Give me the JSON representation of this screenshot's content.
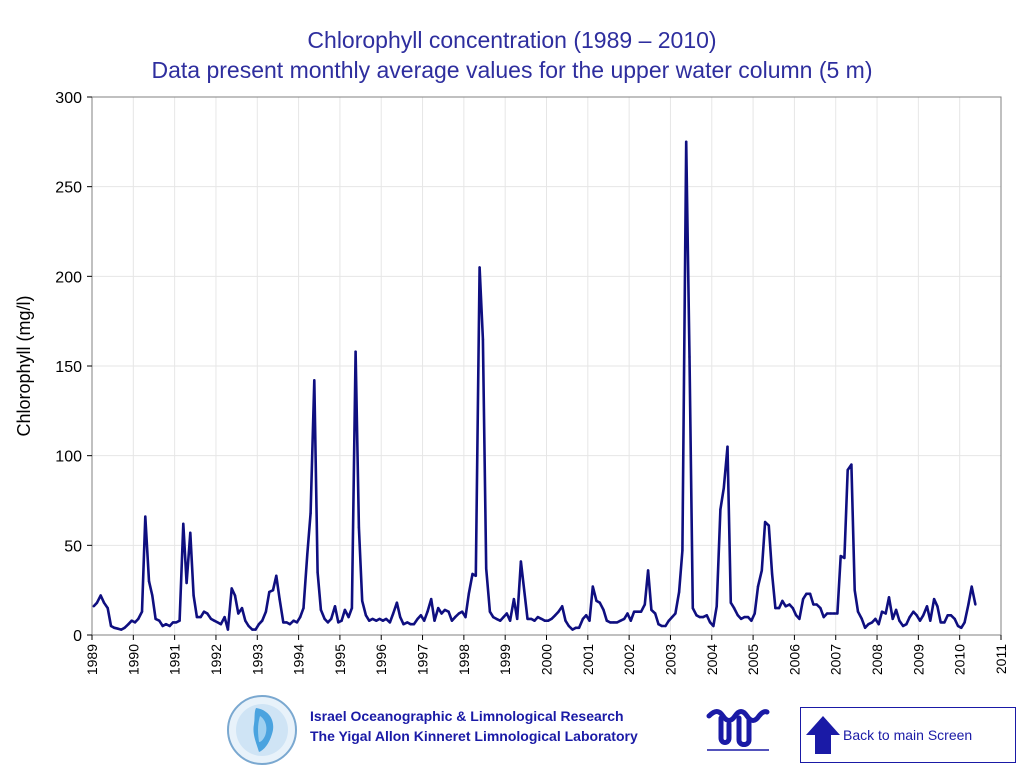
{
  "chart_data": {
    "type": "line",
    "title": "Chlorophyll concentration (1989 – 2010)",
    "subtitle": "Data present monthly average values for the upper water column (5 m)",
    "xlabel": "",
    "ylabel": "Chlorophyll (mg/l)",
    "xlim": [
      1989,
      2011
    ],
    "ylim": [
      0,
      300
    ],
    "yticks": [
      0,
      50,
      100,
      150,
      200,
      250,
      300
    ],
    "xticks": [
      "1989",
      "1990",
      "1991",
      "1992",
      "1993",
      "1994",
      "1995",
      "1996",
      "1997",
      "1998",
      "1999",
      "2000",
      "2001",
      "2002",
      "2003",
      "2004",
      "2005",
      "2006",
      "2007",
      "2008",
      "2009",
      "2010",
      "2011"
    ],
    "grid": true,
    "line_color": "#0f0f80",
    "series": [
      {
        "values": [
          [
            1989.04,
            16
          ],
          [
            1989.12,
            18
          ],
          [
            1989.21,
            22
          ],
          [
            1989.29,
            18
          ],
          [
            1989.38,
            15
          ],
          [
            1989.46,
            5
          ],
          [
            1989.54,
            4
          ],
          [
            1989.63,
            3.5
          ],
          [
            1989.71,
            3
          ],
          [
            1989.79,
            4
          ],
          [
            1989.88,
            6
          ],
          [
            1989.96,
            8
          ],
          [
            1990.04,
            7
          ],
          [
            1990.12,
            9
          ],
          [
            1990.21,
            13
          ],
          [
            1990.29,
            66
          ],
          [
            1990.38,
            30
          ],
          [
            1990.46,
            22
          ],
          [
            1990.54,
            9
          ],
          [
            1990.63,
            8
          ],
          [
            1990.71,
            5
          ],
          [
            1990.79,
            6
          ],
          [
            1990.88,
            5
          ],
          [
            1990.96,
            7
          ],
          [
            1991.04,
            7
          ],
          [
            1991.12,
            8
          ],
          [
            1991.21,
            62
          ],
          [
            1991.29,
            29
          ],
          [
            1991.38,
            57
          ],
          [
            1991.46,
            22
          ],
          [
            1991.54,
            10
          ],
          [
            1991.63,
            10
          ],
          [
            1991.71,
            13
          ],
          [
            1991.79,
            12
          ],
          [
            1991.88,
            9
          ],
          [
            1991.96,
            8
          ],
          [
            1992.04,
            7
          ],
          [
            1992.12,
            6
          ],
          [
            1992.21,
            10
          ],
          [
            1992.29,
            3
          ],
          [
            1992.38,
            26
          ],
          [
            1992.46,
            22
          ],
          [
            1992.54,
            12
          ],
          [
            1992.63,
            15
          ],
          [
            1992.71,
            8
          ],
          [
            1992.79,
            5
          ],
          [
            1992.88,
            3
          ],
          [
            1992.96,
            3
          ],
          [
            1993.04,
            6
          ],
          [
            1993.12,
            8
          ],
          [
            1993.21,
            13
          ],
          [
            1993.29,
            24
          ],
          [
            1993.38,
            25
          ],
          [
            1993.46,
            33
          ],
          [
            1993.54,
            20
          ],
          [
            1993.63,
            7
          ],
          [
            1993.71,
            7
          ],
          [
            1993.79,
            6
          ],
          [
            1993.88,
            8
          ],
          [
            1993.96,
            7
          ],
          [
            1994.04,
            10
          ],
          [
            1994.12,
            15
          ],
          [
            1994.21,
            45
          ],
          [
            1994.29,
            68
          ],
          [
            1994.38,
            142
          ],
          [
            1994.46,
            35
          ],
          [
            1994.54,
            14
          ],
          [
            1994.63,
            9
          ],
          [
            1994.71,
            7
          ],
          [
            1994.79,
            9
          ],
          [
            1994.88,
            16
          ],
          [
            1994.96,
            7
          ],
          [
            1995.04,
            8
          ],
          [
            1995.12,
            14
          ],
          [
            1995.21,
            10
          ],
          [
            1995.29,
            15
          ],
          [
            1995.38,
            158
          ],
          [
            1995.46,
            60
          ],
          [
            1995.54,
            19
          ],
          [
            1995.63,
            11
          ],
          [
            1995.71,
            8
          ],
          [
            1995.79,
            9
          ],
          [
            1995.88,
            8
          ],
          [
            1995.96,
            9
          ],
          [
            1996.04,
            8
          ],
          [
            1996.12,
            9
          ],
          [
            1996.21,
            7
          ],
          [
            1996.29,
            12
          ],
          [
            1996.38,
            18
          ],
          [
            1996.46,
            10
          ],
          [
            1996.54,
            6
          ],
          [
            1996.63,
            7
          ],
          [
            1996.71,
            6
          ],
          [
            1996.79,
            6
          ],
          [
            1996.88,
            9
          ],
          [
            1996.96,
            11
          ],
          [
            1997.04,
            8
          ],
          [
            1997.12,
            13
          ],
          [
            1997.21,
            20
          ],
          [
            1997.29,
            8
          ],
          [
            1997.38,
            15
          ],
          [
            1997.46,
            12
          ],
          [
            1997.54,
            14
          ],
          [
            1997.63,
            13
          ],
          [
            1997.71,
            8
          ],
          [
            1997.79,
            10
          ],
          [
            1997.88,
            12
          ],
          [
            1997.96,
            13
          ],
          [
            1998.04,
            10
          ],
          [
            1998.12,
            23
          ],
          [
            1998.21,
            34
          ],
          [
            1998.29,
            33
          ],
          [
            1998.38,
            205
          ],
          [
            1998.46,
            165
          ],
          [
            1998.54,
            37
          ],
          [
            1998.63,
            13
          ],
          [
            1998.71,
            10
          ],
          [
            1998.79,
            9
          ],
          [
            1998.88,
            8
          ],
          [
            1998.96,
            10
          ],
          [
            1999.04,
            12
          ],
          [
            1999.12,
            8
          ],
          [
            1999.21,
            20
          ],
          [
            1999.29,
            9
          ],
          [
            1999.38,
            41
          ],
          [
            1999.46,
            25
          ],
          [
            1999.54,
            9
          ],
          [
            1999.63,
            9
          ],
          [
            1999.71,
            8
          ],
          [
            1999.79,
            10
          ],
          [
            1999.88,
            9
          ],
          [
            1999.96,
            8
          ],
          [
            2000.04,
            8
          ],
          [
            2000.12,
            9
          ],
          [
            2000.21,
            11
          ],
          [
            2000.29,
            13
          ],
          [
            2000.38,
            16
          ],
          [
            2000.46,
            8
          ],
          [
            2000.54,
            5
          ],
          [
            2000.63,
            3
          ],
          [
            2000.71,
            4
          ],
          [
            2000.79,
            4
          ],
          [
            2000.88,
            9
          ],
          [
            2000.96,
            11
          ],
          [
            2001.04,
            8
          ],
          [
            2001.12,
            27
          ],
          [
            2001.21,
            19
          ],
          [
            2001.29,
            18
          ],
          [
            2001.38,
            14
          ],
          [
            2001.46,
            8
          ],
          [
            2001.54,
            7
          ],
          [
            2001.63,
            7
          ],
          [
            2001.71,
            7
          ],
          [
            2001.79,
            8
          ],
          [
            2001.88,
            9
          ],
          [
            2001.96,
            12
          ],
          [
            2002.04,
            8
          ],
          [
            2002.12,
            13
          ],
          [
            2002.21,
            13
          ],
          [
            2002.29,
            13
          ],
          [
            2002.38,
            17
          ],
          [
            2002.46,
            36
          ],
          [
            2002.54,
            14
          ],
          [
            2002.63,
            12
          ],
          [
            2002.71,
            6
          ],
          [
            2002.79,
            5
          ],
          [
            2002.88,
            5
          ],
          [
            2002.96,
            8
          ],
          [
            2003.04,
            10
          ],
          [
            2003.12,
            12
          ],
          [
            2003.21,
            24
          ],
          [
            2003.29,
            47
          ],
          [
            2003.38,
            275
          ],
          [
            2003.46,
            155
          ],
          [
            2003.54,
            15
          ],
          [
            2003.63,
            11
          ],
          [
            2003.71,
            10
          ],
          [
            2003.79,
            10
          ],
          [
            2003.88,
            11
          ],
          [
            2003.96,
            7
          ],
          [
            2004.04,
            5
          ],
          [
            2004.12,
            16
          ],
          [
            2004.21,
            70
          ],
          [
            2004.29,
            82
          ],
          [
            2004.38,
            105
          ],
          [
            2004.46,
            18
          ],
          [
            2004.54,
            15
          ],
          [
            2004.63,
            11
          ],
          [
            2004.71,
            9
          ],
          [
            2004.79,
            10
          ],
          [
            2004.88,
            10
          ],
          [
            2004.96,
            8
          ],
          [
            2005.04,
            12
          ],
          [
            2005.12,
            27
          ],
          [
            2005.21,
            36
          ],
          [
            2005.29,
            63
          ],
          [
            2005.38,
            61
          ],
          [
            2005.46,
            34
          ],
          [
            2005.54,
            15
          ],
          [
            2005.63,
            15
          ],
          [
            2005.71,
            19
          ],
          [
            2005.79,
            16
          ],
          [
            2005.88,
            17
          ],
          [
            2005.96,
            15
          ],
          [
            2006.04,
            11
          ],
          [
            2006.12,
            9
          ],
          [
            2006.21,
            20
          ],
          [
            2006.29,
            23
          ],
          [
            2006.38,
            23
          ],
          [
            2006.46,
            17
          ],
          [
            2006.54,
            17
          ],
          [
            2006.63,
            15
          ],
          [
            2006.71,
            10
          ],
          [
            2006.79,
            12
          ],
          [
            2006.88,
            12
          ],
          [
            2006.96,
            12
          ],
          [
            2007.04,
            12
          ],
          [
            2007.12,
            44
          ],
          [
            2007.21,
            43
          ],
          [
            2007.29,
            92
          ],
          [
            2007.38,
            95
          ],
          [
            2007.46,
            25
          ],
          [
            2007.54,
            13
          ],
          [
            2007.63,
            9
          ],
          [
            2007.71,
            4
          ],
          [
            2007.79,
            6
          ],
          [
            2007.88,
            7
          ],
          [
            2007.96,
            9
          ],
          [
            2008.04,
            6
          ],
          [
            2008.12,
            13
          ],
          [
            2008.21,
            12
          ],
          [
            2008.29,
            21
          ],
          [
            2008.38,
            9
          ],
          [
            2008.46,
            14
          ],
          [
            2008.54,
            8
          ],
          [
            2008.63,
            5
          ],
          [
            2008.71,
            6
          ],
          [
            2008.79,
            10
          ],
          [
            2008.88,
            13
          ],
          [
            2008.96,
            11
          ],
          [
            2009.04,
            8
          ],
          [
            2009.12,
            11
          ],
          [
            2009.21,
            16
          ],
          [
            2009.29,
            8
          ],
          [
            2009.38,
            20
          ],
          [
            2009.46,
            16
          ],
          [
            2009.54,
            7
          ],
          [
            2009.63,
            7
          ],
          [
            2009.71,
            11
          ],
          [
            2009.79,
            11
          ],
          [
            2009.88,
            9
          ],
          [
            2009.96,
            5
          ],
          [
            2010.04,
            4
          ],
          [
            2010.12,
            7
          ],
          [
            2010.21,
            17
          ],
          [
            2010.29,
            27
          ],
          [
            2010.38,
            17
          ]
        ]
      }
    ]
  },
  "footer": {
    "org_line_1": "Israel Oceanographic & Limnological Research",
    "org_line_2": "The Yigal Allon Kinneret Limnological Laboratory",
    "logo_icon": "kinneret-data-center-logo",
    "mark_icon": "iolr-logo",
    "back_button_label": "Back to main Screen",
    "back_icon": "up-arrow-icon",
    "accent_color": "#1a1aa6"
  }
}
